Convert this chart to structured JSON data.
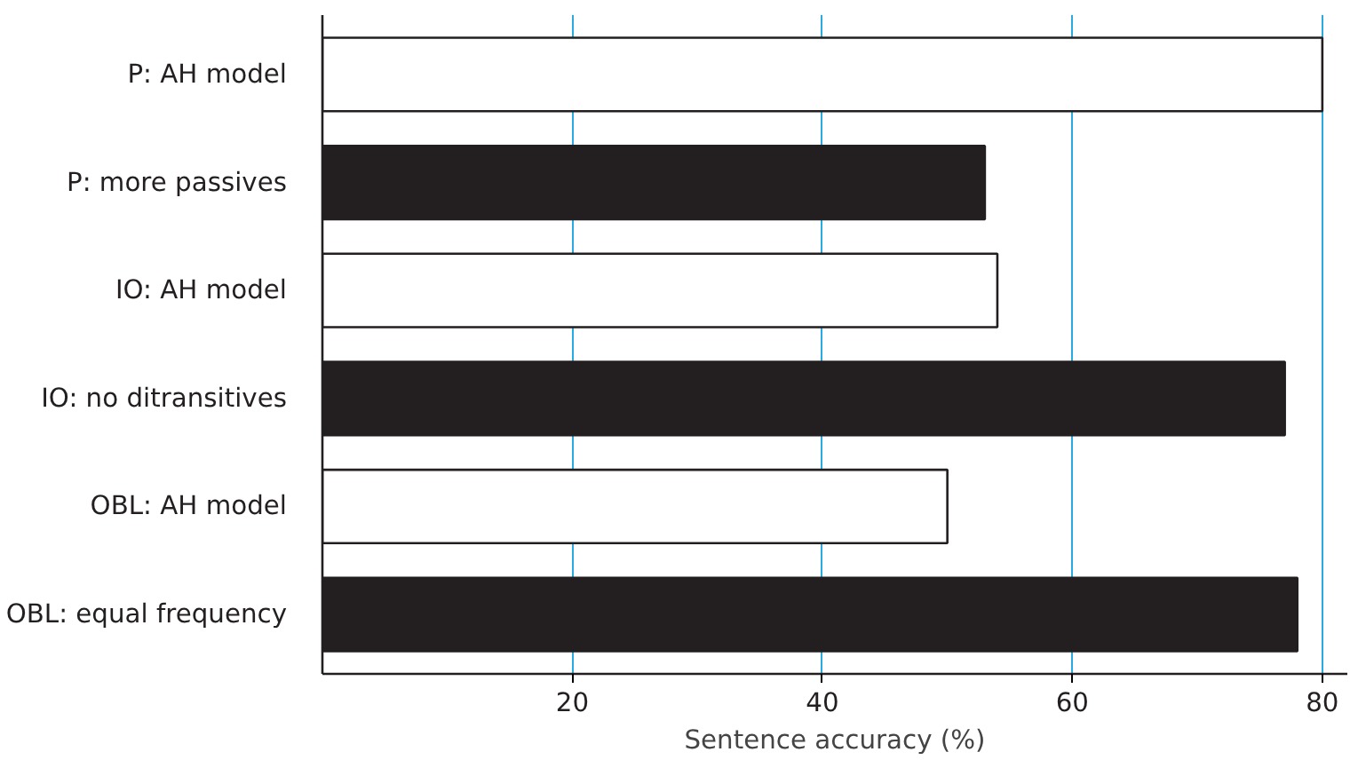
{
  "chart_data": {
    "type": "bar",
    "orientation": "horizontal",
    "xlabel": "Sentence accuracy (%)",
    "categories": [
      "P: AH model",
      "P: more passives",
      "IO: AH model",
      "IO: no ditransitives",
      "OBL: AH model",
      "OBL: equal frequency"
    ],
    "values": [
      80,
      53,
      54,
      77,
      50,
      78
    ],
    "colors": [
      "#ffffff",
      "#231f20",
      "#ffffff",
      "#231f20",
      "#ffffff",
      "#231f20"
    ],
    "xlim": [
      0,
      82
    ],
    "xticks": [
      20,
      40,
      60,
      80
    ],
    "grid": "x"
  }
}
